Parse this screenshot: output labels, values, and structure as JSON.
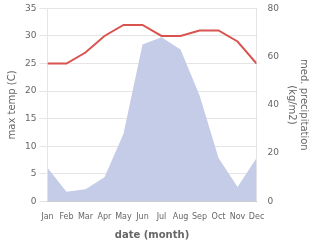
{
  "chart_data": {
    "type": "line",
    "xlabel": "date (month)",
    "ylabel": "max temp (C)",
    "y2label": "med. precipitation\n(kg/m2)",
    "categories": [
      "Jan",
      "Feb",
      "Mar",
      "Apr",
      "May",
      "Jun",
      "Jul",
      "Aug",
      "Sep",
      "Oct",
      "Nov",
      "Dec"
    ],
    "series": [
      {
        "type": "area",
        "axis": "y2",
        "color": "#c5cce8",
        "values": [
          14,
          4,
          5,
          10,
          28,
          65,
          68,
          63,
          44,
          18,
          6,
          18
        ]
      },
      {
        "type": "line",
        "color": "#d9534f",
        "values": [
          25,
          25,
          27,
          30,
          32,
          32,
          30,
          30,
          31,
          31,
          29,
          25
        ]
      }
    ],
    "ylim": [
      0,
      35
    ],
    "yticks": [
      0,
      5,
      10,
      15,
      20,
      25,
      30,
      35
    ],
    "y2lim": [
      0,
      80
    ],
    "y2ticks": [
      0,
      20,
      40,
      60,
      80
    ],
    "grid": true
  }
}
